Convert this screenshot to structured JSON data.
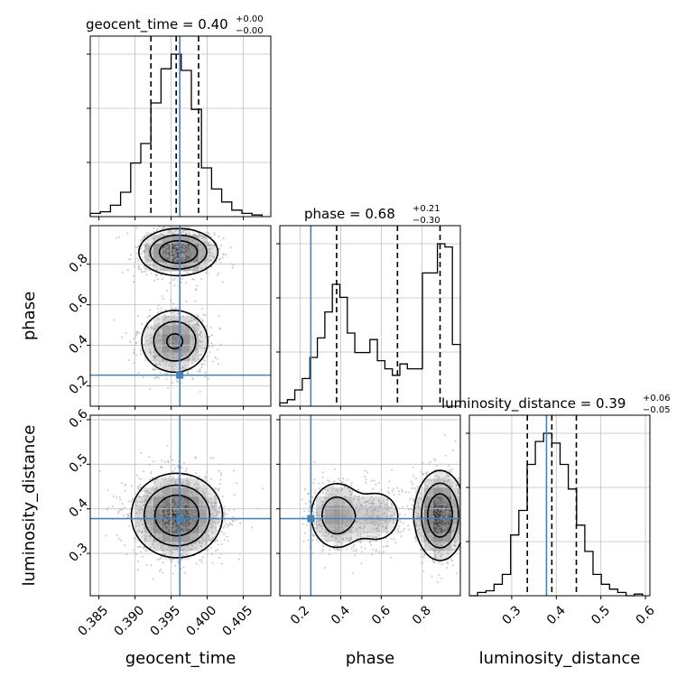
{
  "chart_data": {
    "type": "corner",
    "parameters": [
      "geocent_time",
      "phase",
      "luminosity_distance"
    ],
    "truths": {
      "geocent_time": 0.3962,
      "phase": 0.253,
      "luminosity_distance": 0.378
    },
    "titles": [
      {
        "param": "geocent_time",
        "text": "geocent_time = 0.40",
        "plus": "+0.00",
        "minus": "−0.00"
      },
      {
        "param": "phase",
        "text": "phase = 0.68",
        "plus": "+0.21",
        "minus": "−0.30"
      },
      {
        "param": "luminosity_distance",
        "text": "luminosity_distance = 0.39",
        "plus": "+0.06",
        "minus": "−0.05"
      }
    ],
    "axes": {
      "geocent_time": {
        "range": [
          0.3838,
          0.4088
        ],
        "ticks": [
          0.385,
          0.39,
          0.395,
          0.4,
          0.405
        ],
        "tick_labels": [
          "0.385",
          "0.390",
          "0.395",
          "0.400",
          "0.405"
        ],
        "label": "geocent_time"
      },
      "phase": {
        "range": [
          0.1,
          0.99
        ],
        "ticks": [
          0.2,
          0.4,
          0.6,
          0.8
        ],
        "tick_labels": [
          "0.2",
          "0.4",
          "0.6",
          "0.8"
        ],
        "label": "phase"
      },
      "luminosity_distance": {
        "range": [
          0.205,
          0.61
        ],
        "ticks": [
          0.3,
          0.4,
          0.5,
          0.6
        ],
        "tick_labels": [
          "0.3",
          "0.4",
          "0.5",
          "0.6"
        ],
        "label": "luminosity_distance"
      }
    },
    "histograms": [
      {
        "param": "geocent_time",
        "bin_edges": [
          0.3838,
          0.3852,
          0.3866,
          0.388,
          0.3894,
          0.3908,
          0.3922,
          0.3936,
          0.395,
          0.3964,
          0.3978,
          0.3992,
          0.4006,
          0.402,
          0.4034,
          0.4048,
          0.4062,
          0.4076
        ],
        "counts": [
          0.02,
          0.03,
          0.07,
          0.15,
          0.33,
          0.45,
          0.7,
          0.91,
          1.0,
          0.9,
          0.66,
          0.3,
          0.17,
          0.09,
          0.04,
          0.02,
          0.01
        ],
        "quantiles": [
          0.3922,
          0.3957,
          0.3988
        ]
      },
      {
        "param": "phase",
        "bin_edges": [
          0.1,
          0.137,
          0.174,
          0.211,
          0.248,
          0.285,
          0.322,
          0.359,
          0.396,
          0.433,
          0.47,
          0.507,
          0.544,
          0.581,
          0.618,
          0.655,
          0.692,
          0.729,
          0.766,
          0.803,
          0.84,
          0.877,
          0.914,
          0.951,
          0.99
        ],
        "counts": [
          0.02,
          0.04,
          0.1,
          0.17,
          0.3,
          0.42,
          0.58,
          0.75,
          0.67,
          0.45,
          0.33,
          0.33,
          0.41,
          0.28,
          0.23,
          0.19,
          0.26,
          0.23,
          0.23,
          0.82,
          0.82,
          1.0,
          0.98,
          0.38
        ],
        "quantiles": [
          0.38,
          0.68,
          0.89
        ]
      },
      {
        "param": "luminosity_distance",
        "bin_edges": [
          0.205,
          0.2235,
          0.242,
          0.2605,
          0.279,
          0.2975,
          0.316,
          0.3345,
          0.353,
          0.3715,
          0.39,
          0.4085,
          0.427,
          0.4455,
          0.464,
          0.4825,
          0.501,
          0.5195,
          0.538,
          0.5565,
          0.575,
          0.5935
        ],
        "counts": [
          0.0,
          0.02,
          0.03,
          0.07,
          0.13,
          0.37,
          0.52,
          0.8,
          0.94,
          0.99,
          0.93,
          0.8,
          0.65,
          0.43,
          0.27,
          0.13,
          0.07,
          0.04,
          0.02,
          0.0,
          0.01
        ],
        "quantiles": [
          0.335,
          0.39,
          0.445
        ]
      }
    ],
    "contours_2d": [
      {
        "x": "geocent_time",
        "y": "phase",
        "modes": [
          {
            "x": 0.396,
            "y": 0.86,
            "sx": 0.0026,
            "sy": 0.055,
            "w": 0.6
          },
          {
            "x": 0.3955,
            "y": 0.42,
            "sx": 0.0024,
            "sy": 0.08,
            "w": 0.4
          }
        ]
      },
      {
        "x": "geocent_time",
        "y": "luminosity_distance",
        "modes": [
          {
            "x": 0.3958,
            "y": 0.385,
            "sx": 0.003,
            "sy": 0.045,
            "w": 1.0
          }
        ]
      },
      {
        "x": "phase",
        "y": "luminosity_distance",
        "modes": [
          {
            "x": 0.38,
            "y": 0.385,
            "sx": 0.07,
            "sy": 0.04,
            "w": 0.35
          },
          {
            "x": 0.58,
            "y": 0.383,
            "sx": 0.07,
            "sy": 0.035,
            "w": 0.2
          },
          {
            "x": 0.89,
            "y": 0.385,
            "sx": 0.06,
            "sy": 0.048,
            "w": 0.65
          }
        ]
      }
    ],
    "grid": true,
    "colors": {
      "truth": "#4682b4",
      "hist": "#000000",
      "grid": "#c0c0c0",
      "samples": "#9a9a9a"
    }
  }
}
